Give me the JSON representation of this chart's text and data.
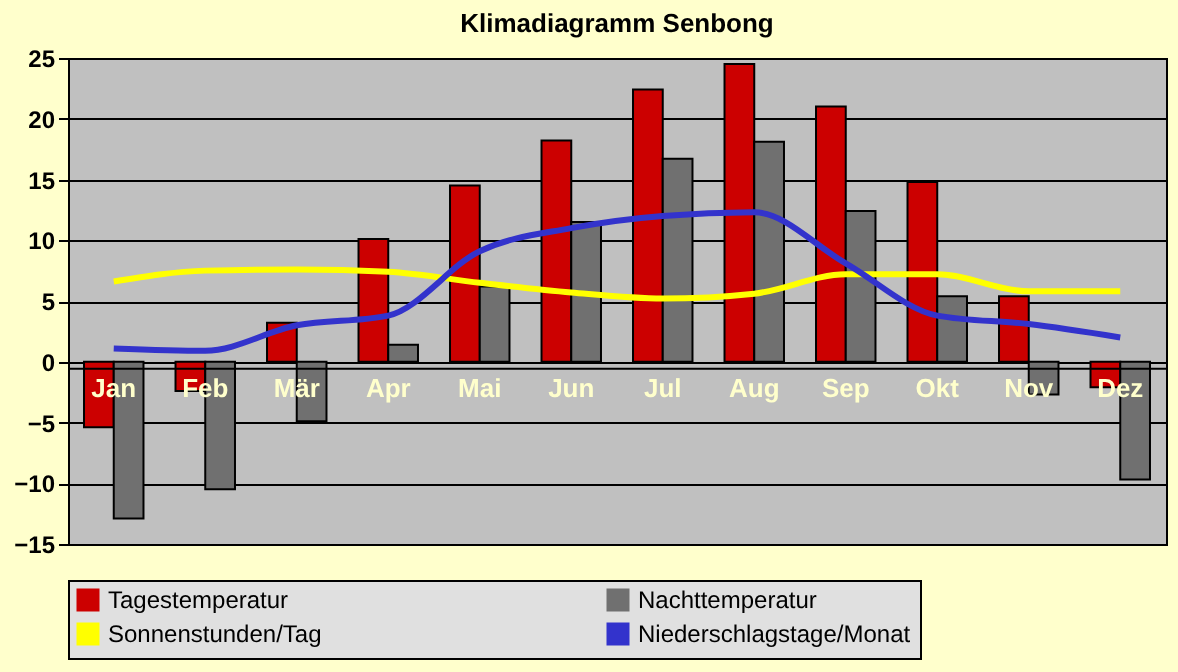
{
  "chart_data": {
    "type": "bar",
    "title": "Klimadiagramm Senbong",
    "categories": [
      "Jan",
      "Feb",
      "Mär",
      "Apr",
      "Mai",
      "Jun",
      "Jul",
      "Aug",
      "Sep",
      "Okt",
      "Nov",
      "Dez"
    ],
    "series": [
      {
        "name": "Tagestemperatur",
        "color": "#cc0000",
        "values": [
          -5.4,
          -2.4,
          3.2,
          10.1,
          14.5,
          18.2,
          22.4,
          24.5,
          21.0,
          14.8,
          5.4,
          -2.1
        ]
      },
      {
        "name": "Nachttemperatur",
        "color": "#707070",
        "values": [
          -12.9,
          -10.5,
          -4.9,
          1.4,
          6.2,
          11.5,
          16.7,
          18.1,
          12.4,
          5.4,
          -2.7,
          -9.7
        ]
      },
      {
        "name": "Sonnenstunden/Tag",
        "type": "line",
        "color": "#ffff00",
        "values": [
          6.6,
          7.5,
          7.6,
          7.4,
          6.5,
          5.7,
          5.2,
          5.6,
          7.2,
          7.2,
          5.8,
          5.8
        ]
      },
      {
        "name": "Niederschlagstage/Monat",
        "type": "line",
        "color": "#3333cc",
        "values": [
          1.1,
          0.9,
          3.0,
          3.8,
          9.1,
          11.0,
          12.0,
          12.3,
          8.1,
          3.8,
          3.1,
          2.0
        ]
      }
    ],
    "ylim": [
      -15,
      25
    ],
    "yticks": [
      -15,
      -10,
      -5,
      0,
      5,
      10,
      15,
      20,
      25
    ],
    "grid": "y",
    "legend": "bottom"
  }
}
